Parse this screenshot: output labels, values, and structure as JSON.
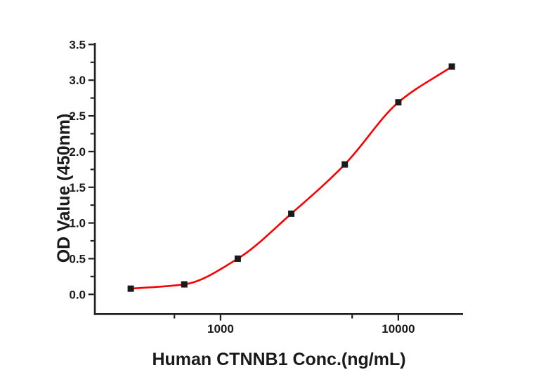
{
  "page": {
    "background": "#ffffff"
  },
  "chart_data": {
    "type": "scatter",
    "title": "",
    "xlabel": "Human CTNNB1 Conc.(ng/mL)",
    "ylabel": "OD Value (450nm)",
    "x_scale": "log",
    "x": [
      312.5,
      625,
      1250,
      2500,
      5000,
      10000,
      20000
    ],
    "y": [
      0.08,
      0.14,
      0.5,
      1.13,
      1.82,
      2.69,
      3.19
    ],
    "xlim": [
      196,
      23100
    ],
    "ylim": [
      -0.27,
      3.5
    ],
    "x_major_ticks": [
      1000,
      10000
    ],
    "x_major_tick_labels": [
      "1000",
      "10000"
    ],
    "x_minor_ticks": [
      550,
      5500
    ],
    "y_major_ticks": [
      0.0,
      0.5,
      1.0,
      1.5,
      2.0,
      2.5,
      3.0,
      3.5
    ],
    "y_major_tick_labels": [
      "0.0",
      "0.5",
      "1.0",
      "1.5",
      "2.0",
      "2.5",
      "3.0",
      "3.5"
    ],
    "y_minor_ticks": [
      0.25,
      0.75,
      1.25,
      1.75,
      2.25,
      2.75,
      3.25
    ],
    "grid": false,
    "legend": "none",
    "frame": "left-bottom-only",
    "marker": {
      "shape": "square",
      "color": "#1a1a1a",
      "size": 9
    },
    "fit_line": {
      "shape": "sigmoid",
      "color": "#fa0000",
      "width": 2.6
    },
    "axis_color": "#1f1f1f",
    "text_color": "#1a1a1a"
  }
}
